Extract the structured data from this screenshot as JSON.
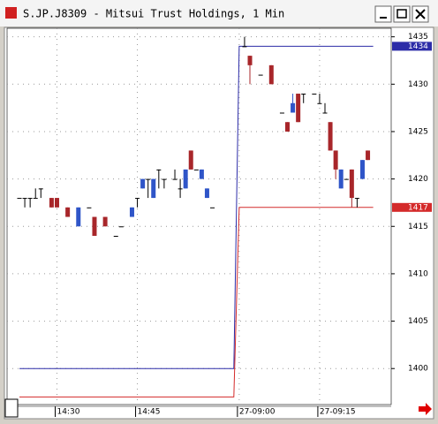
{
  "chart_data": {
    "type": "candlestick",
    "title": "S.JP.J8309 - Mitsui Trust Holdings, 1 Min",
    "categories": [
      null,
      null,
      null,
      null,
      null,
      null,
      null,
      "14:30",
      null,
      null,
      null,
      null,
      null,
      null,
      null,
      null,
      null,
      null,
      null,
      null,
      null,
      null,
      "14:45",
      null,
      null,
      null,
      null,
      null,
      null,
      null,
      null,
      null,
      null,
      null,
      null,
      null,
      null,
      null,
      null,
      null,
      null,
      "27-09:00",
      null,
      null,
      null,
      null,
      null,
      null,
      null,
      null,
      null,
      null,
      null,
      null,
      null,
      null,
      "27-09:15",
      null,
      null,
      null,
      null,
      null,
      null,
      null,
      null,
      null,
      null
    ],
    "open": [
      1418,
      1418,
      1418,
      1418,
      1419,
      null,
      1418,
      1418,
      null,
      1417,
      null,
      1415,
      null,
      1417,
      1416,
      null,
      1416,
      null,
      1414,
      1415,
      null,
      1416,
      1418,
      1419,
      1420,
      1418,
      1421,
      1420,
      null,
      1420,
      1419,
      1419,
      1423,
      1421,
      1420,
      1418,
      1417,
      null,
      null,
      null,
      null,
      null,
      1434,
      1433,
      null,
      1431,
      null,
      1432,
      null,
      1427,
      1426,
      1427,
      1429,
      1429,
      null,
      1429,
      1428,
      1427,
      1426,
      1423,
      1419,
      1420,
      1421,
      1418,
      1420,
      1423,
      null
    ],
    "high": [
      1418,
      1418,
      1418,
      1419,
      1419,
      null,
      1418,
      1418,
      null,
      1417,
      null,
      1417,
      null,
      1417,
      1416,
      null,
      1416,
      null,
      1414,
      1415,
      null,
      1417,
      1418,
      1420,
      1420,
      1420,
      1421,
      1420,
      null,
      1421,
      1420,
      1421,
      1423,
      1421,
      1421,
      1419,
      1417,
      null,
      null,
      null,
      null,
      null,
      1435,
      1433,
      null,
      1431,
      null,
      1432,
      null,
      1427,
      1426,
      1429,
      1429,
      1429,
      null,
      1429,
      1429,
      1428,
      1426,
      1423,
      1421,
      1420,
      1421,
      1418,
      1422,
      1423,
      null
    ],
    "low": [
      1418,
      1417,
      1417,
      1418,
      1418,
      null,
      1417,
      1417,
      null,
      1416,
      null,
      1415,
      null,
      1417,
      1414,
      null,
      1415,
      null,
      1414,
      1415,
      null,
      1416,
      1417,
      1419,
      1418,
      1418,
      1419,
      1419,
      null,
      1420,
      1418,
      1419,
      1421,
      1421,
      1420,
      1418,
      1417,
      null,
      null,
      null,
      null,
      null,
      1434,
      1430,
      null,
      1431,
      null,
      1430,
      null,
      1427,
      1425,
      1427,
      1426,
      1428,
      null,
      1429,
      1428,
      1427,
      1423,
      1420,
      1419,
      1420,
      1417,
      1417,
      1420,
      1422,
      null
    ],
    "close": [
      1418,
      1418,
      1418,
      1418,
      1419,
      null,
      1417,
      1417,
      null,
      1416,
      null,
      1417,
      null,
      1417,
      1414,
      null,
      1415,
      null,
      1414,
      1415,
      null,
      1417,
      1418,
      1420,
      1420,
      1420,
      1421,
      1420,
      null,
      1420,
      1419,
      1421,
      1421,
      1421,
      1421,
      1419,
      1417,
      null,
      null,
      null,
      null,
      null,
      1434,
      1432,
      null,
      1431,
      null,
      1430,
      null,
      1427,
      1425,
      1428,
      1426,
      1429,
      null,
      1429,
      1428,
      1427,
      1423,
      1421,
      1421,
      1420,
      1418,
      1418,
      1422,
      1422,
      null
    ],
    "up_color": "#2f55c8",
    "down_color": "#a8262a",
    "series": [
      {
        "color": "#2c2ca8",
        "values": [
          1400,
          1400,
          1400,
          1400,
          1400,
          1400,
          1400,
          1400,
          1400,
          1400,
          1400,
          1400,
          1400,
          1400,
          1400,
          1400,
          1400,
          1400,
          1400,
          1400,
          1400,
          1400,
          1400,
          1400,
          1400,
          1400,
          1400,
          1400,
          1400,
          1400,
          1400,
          1400,
          1400,
          1400,
          1400,
          1400,
          1400,
          1400,
          1400,
          1400,
          1400,
          1434,
          1434,
          1434,
          1434,
          1434,
          1434,
          1434,
          1434,
          1434,
          1434,
          1434,
          1434,
          1434,
          1434,
          1434,
          1434,
          1434,
          1434,
          1434,
          1434,
          1434,
          1434,
          1434,
          1434,
          1434,
          1434
        ]
      },
      {
        "color": "#d42a2a",
        "values": [
          1397,
          1397,
          1397,
          1397,
          1397,
          1397,
          1397,
          1397,
          1397,
          1397,
          1397,
          1397,
          1397,
          1397,
          1397,
          1397,
          1397,
          1397,
          1397,
          1397,
          1397,
          1397,
          1397,
          1397,
          1397,
          1397,
          1397,
          1397,
          1397,
          1397,
          1397,
          1397,
          1397,
          1397,
          1397,
          1397,
          1397,
          1397,
          1397,
          1397,
          1397,
          1417,
          1417,
          1417,
          1417,
          1417,
          1417,
          1417,
          1417,
          1417,
          1417,
          1417,
          1417,
          1417,
          1417,
          1417,
          1417,
          1417,
          1417,
          1417,
          1417,
          1417,
          1417,
          1417,
          1417,
          1417,
          1417
        ]
      }
    ],
    "ylim": [
      1396.2,
      1435.9
    ],
    "yticks": [
      1400,
      1405,
      1410,
      1415,
      1420,
      1425,
      1430,
      1435
    ],
    "grid": true
  }
}
